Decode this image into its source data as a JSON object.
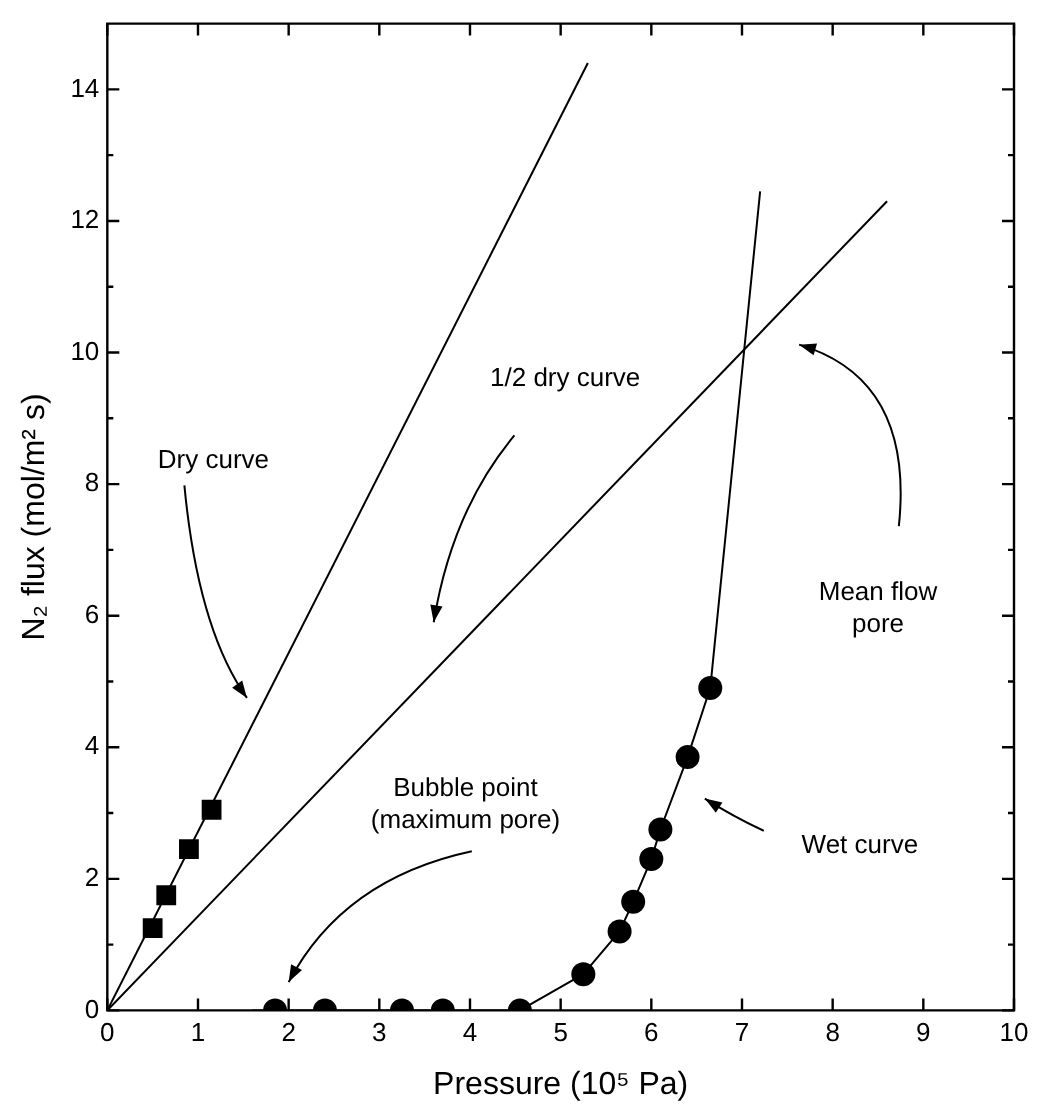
{
  "chart_data": {
    "type": "scatter",
    "xlabel": "Pressure (10⁵ Pa)",
    "ylabel": "N₂ flux (mol/m² s)",
    "xlim": [
      0,
      10
    ],
    "ylim": [
      0,
      15
    ],
    "xticks": [
      0,
      1,
      2,
      3,
      4,
      5,
      6,
      7,
      8,
      9,
      10
    ],
    "yticks": [
      0,
      {
        "value": 1,
        "label": null
      },
      2,
      {
        "value": 3,
        "label": null
      },
      4,
      {
        "value": 5,
        "label": null
      },
      6,
      {
        "value": 7,
        "label": null
      },
      8,
      {
        "value": 9,
        "label": null
      },
      10,
      {
        "value": 11,
        "label": null
      },
      12,
      {
        "value": 13,
        "label": null
      },
      14
    ],
    "grid": false,
    "legend": false,
    "series": [
      {
        "type": "scatter",
        "marker": "square",
        "color": "#000000",
        "x": [
          0.5,
          0.65,
          0.9,
          1.15
        ],
        "values": [
          1.25,
          1.75,
          2.45,
          3.05
        ]
      },
      {
        "type": "line",
        "marker": "none",
        "color": "#000000",
        "x": [
          0,
          5.3
        ],
        "values": [
          0,
          14.4
        ]
      },
      {
        "type": "line",
        "marker": "none",
        "color": "#000000",
        "x": [
          0,
          8.6
        ],
        "values": [
          0,
          12.3
        ]
      },
      {
        "type": "scatter",
        "marker": "circle",
        "color": "#000000",
        "x": [
          1.85,
          2.4,
          3.25,
          3.7,
          4.55,
          5.25,
          5.65,
          5.8,
          6.0,
          6.1,
          6.4,
          6.65
        ],
        "values": [
          0,
          0,
          0,
          0,
          0,
          0.55,
          1.2,
          1.65,
          2.3,
          2.75,
          3.85,
          4.9
        ]
      },
      {
        "type": "line",
        "marker": "none",
        "color": "#000000",
        "x": [
          1.6,
          4.55,
          5.25,
          5.65,
          5.8,
          6.0,
          6.1,
          6.4,
          6.65,
          7.2
        ],
        "values": [
          0,
          0,
          0.55,
          1.2,
          1.65,
          2.3,
          2.75,
          3.85,
          4.9,
          12.45
        ]
      }
    ],
    "annotations": [
      "Dry curve",
      "1/2 dry curve",
      "Mean flow\npore",
      "Bubble point\n(maximum pore)",
      "Wet curve"
    ]
  }
}
